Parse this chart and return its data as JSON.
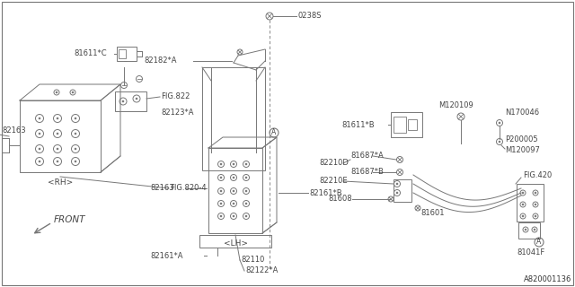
{
  "bg_color": "#ffffff",
  "lc": "#777777",
  "tc": "#444444",
  "part_number": "A820001136",
  "labels": {
    "rh": "<RH>",
    "lh": "<LH>",
    "front": "FRONT",
    "fig822": "FIG.822",
    "fig820_4": "FIG.820-4",
    "fig420": "FIG.420",
    "p82163": "82163",
    "p81611c": "81611*C",
    "p81611b": "81611*B",
    "p82182a": "82182*A",
    "p82123a": "82123*A",
    "p82161a": "82161*A",
    "p82161b": "82161*B",
    "p82110": "82110",
    "p82122a": "82122*A",
    "p82210d": "82210D",
    "p82210e": "82210E",
    "p81687a": "81687*A",
    "p81687b": "81687*B",
    "p81608": "81608",
    "p81601": "81601",
    "p81041f": "81041F",
    "p0238s": "0238S",
    "pm120109": "M120109",
    "pn170046": "N170046",
    "pp200005": "P200005",
    "pm120097": "M120097"
  }
}
